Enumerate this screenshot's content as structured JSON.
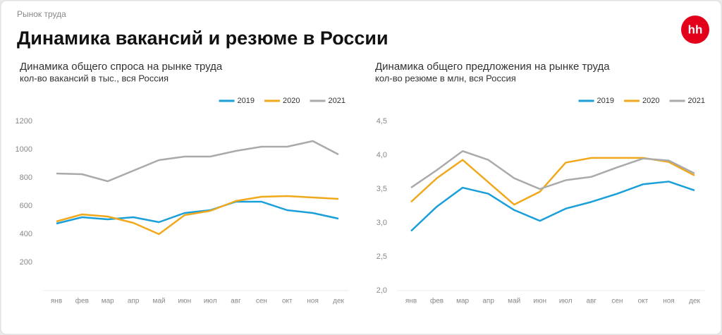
{
  "header": {
    "breadcrumb": "Рынок труда",
    "title": "Динамика вакансий и резюме в России",
    "logo": "hh"
  },
  "chart_data": [
    {
      "type": "line",
      "title": "Динамика общего спроса на рынке труда",
      "subtitle": "кол-во вакансий в тыс., вся Россия",
      "categories": [
        "янв",
        "фев",
        "мар",
        "апр",
        "май",
        "июн",
        "июл",
        "авг",
        "сен",
        "окт",
        "ноя",
        "дек"
      ],
      "series": [
        {
          "name": "2019",
          "color": "#1a9fd9",
          "values": [
            475,
            520,
            505,
            520,
            485,
            550,
            570,
            630,
            630,
            570,
            550,
            510
          ]
        },
        {
          "name": "2020",
          "color": "#f0a81c",
          "values": [
            490,
            540,
            525,
            480,
            400,
            535,
            565,
            635,
            665,
            670,
            660,
            650
          ]
        },
        {
          "name": "2021",
          "color": "#aaaaaa",
          "values": [
            830,
            825,
            775,
            850,
            925,
            950,
            950,
            990,
            1020,
            1020,
            1060,
            965
          ]
        }
      ],
      "ylim": [
        0,
        1200
      ],
      "yticks": [
        200,
        400,
        600,
        800,
        1000,
        1200
      ],
      "grid": false,
      "legend": "top-right"
    },
    {
      "type": "line",
      "title": "Динамика общего предложения на рынке труда",
      "subtitle": "кол-во резюме в млн, вся Россия",
      "categories": [
        "янв",
        "фев",
        "мар",
        "апр",
        "май",
        "июн",
        "июл",
        "авг",
        "сен",
        "окт",
        "ноя",
        "дек"
      ],
      "series": [
        {
          "name": "2019",
          "color": "#1a9fd9",
          "values": [
            2.88,
            3.24,
            3.52,
            3.43,
            3.19,
            3.03,
            3.21,
            3.31,
            3.43,
            3.57,
            3.61,
            3.48
          ]
        },
        {
          "name": "2020",
          "color": "#f0a81c",
          "values": [
            3.31,
            3.66,
            3.93,
            3.6,
            3.27,
            3.46,
            3.89,
            3.96,
            3.96,
            3.96,
            3.9,
            3.7
          ]
        },
        {
          "name": "2021",
          "color": "#aaaaaa",
          "values": [
            3.52,
            3.78,
            4.06,
            3.93,
            3.66,
            3.5,
            3.63,
            3.68,
            3.82,
            3.95,
            3.92,
            3.73
          ]
        }
      ],
      "ylim": [
        2.0,
        4.5
      ],
      "yticks": [
        {
          "value": 2.0,
          "label": "2,0"
        },
        {
          "value": 2.5,
          "label": "2,5"
        },
        {
          "value": 3.0,
          "label": "3,0"
        },
        {
          "value": 3.5,
          "label": "3,5"
        },
        {
          "value": 4.0,
          "label": "4,0"
        },
        {
          "value": 4.5,
          "label": "4,5"
        }
      ],
      "grid": false,
      "legend": "top-right"
    }
  ]
}
